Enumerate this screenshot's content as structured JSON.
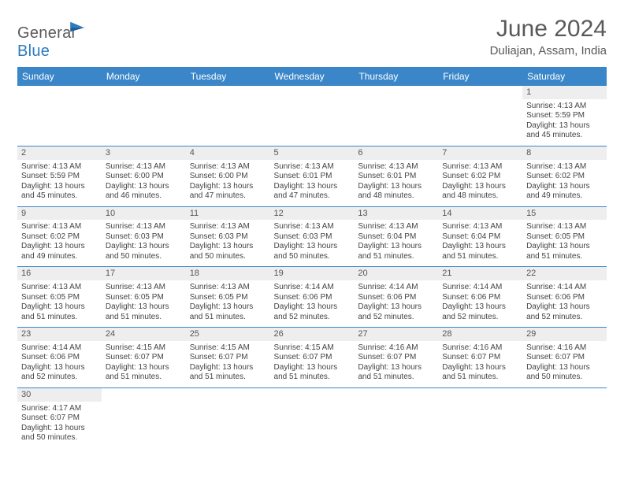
{
  "logo": {
    "text1": "General",
    "text2": "Blue"
  },
  "title": "June 2024",
  "location": "Duliajan, Assam, India",
  "colors": {
    "header_bg": "#3a86c8",
    "header_text": "#ffffff",
    "border": "#3a86c8",
    "daynum_bg": "#eeeeee",
    "text": "#444444",
    "title_text": "#595959"
  },
  "days": [
    "Sunday",
    "Monday",
    "Tuesday",
    "Wednesday",
    "Thursday",
    "Friday",
    "Saturday"
  ],
  "weeks": [
    {
      "nums": [
        "",
        "",
        "",
        "",
        "",
        "",
        "1"
      ],
      "cells": [
        "",
        "",
        "",
        "",
        "",
        "",
        "Sunrise: 4:13 AM\nSunset: 5:59 PM\nDaylight: 13 hours and 45 minutes."
      ]
    },
    {
      "nums": [
        "2",
        "3",
        "4",
        "5",
        "6",
        "7",
        "8"
      ],
      "cells": [
        "Sunrise: 4:13 AM\nSunset: 5:59 PM\nDaylight: 13 hours and 45 minutes.",
        "Sunrise: 4:13 AM\nSunset: 6:00 PM\nDaylight: 13 hours and 46 minutes.",
        "Sunrise: 4:13 AM\nSunset: 6:00 PM\nDaylight: 13 hours and 47 minutes.",
        "Sunrise: 4:13 AM\nSunset: 6:01 PM\nDaylight: 13 hours and 47 minutes.",
        "Sunrise: 4:13 AM\nSunset: 6:01 PM\nDaylight: 13 hours and 48 minutes.",
        "Sunrise: 4:13 AM\nSunset: 6:02 PM\nDaylight: 13 hours and 48 minutes.",
        "Sunrise: 4:13 AM\nSunset: 6:02 PM\nDaylight: 13 hours and 49 minutes."
      ]
    },
    {
      "nums": [
        "9",
        "10",
        "11",
        "12",
        "13",
        "14",
        "15"
      ],
      "cells": [
        "Sunrise: 4:13 AM\nSunset: 6:02 PM\nDaylight: 13 hours and 49 minutes.",
        "Sunrise: 4:13 AM\nSunset: 6:03 PM\nDaylight: 13 hours and 50 minutes.",
        "Sunrise: 4:13 AM\nSunset: 6:03 PM\nDaylight: 13 hours and 50 minutes.",
        "Sunrise: 4:13 AM\nSunset: 6:03 PM\nDaylight: 13 hours and 50 minutes.",
        "Sunrise: 4:13 AM\nSunset: 6:04 PM\nDaylight: 13 hours and 51 minutes.",
        "Sunrise: 4:13 AM\nSunset: 6:04 PM\nDaylight: 13 hours and 51 minutes.",
        "Sunrise: 4:13 AM\nSunset: 6:05 PM\nDaylight: 13 hours and 51 minutes."
      ]
    },
    {
      "nums": [
        "16",
        "17",
        "18",
        "19",
        "20",
        "21",
        "22"
      ],
      "cells": [
        "Sunrise: 4:13 AM\nSunset: 6:05 PM\nDaylight: 13 hours and 51 minutes.",
        "Sunrise: 4:13 AM\nSunset: 6:05 PM\nDaylight: 13 hours and 51 minutes.",
        "Sunrise: 4:13 AM\nSunset: 6:05 PM\nDaylight: 13 hours and 51 minutes.",
        "Sunrise: 4:14 AM\nSunset: 6:06 PM\nDaylight: 13 hours and 52 minutes.",
        "Sunrise: 4:14 AM\nSunset: 6:06 PM\nDaylight: 13 hours and 52 minutes.",
        "Sunrise: 4:14 AM\nSunset: 6:06 PM\nDaylight: 13 hours and 52 minutes.",
        "Sunrise: 4:14 AM\nSunset: 6:06 PM\nDaylight: 13 hours and 52 minutes."
      ]
    },
    {
      "nums": [
        "23",
        "24",
        "25",
        "26",
        "27",
        "28",
        "29"
      ],
      "cells": [
        "Sunrise: 4:14 AM\nSunset: 6:06 PM\nDaylight: 13 hours and 52 minutes.",
        "Sunrise: 4:15 AM\nSunset: 6:07 PM\nDaylight: 13 hours and 51 minutes.",
        "Sunrise: 4:15 AM\nSunset: 6:07 PM\nDaylight: 13 hours and 51 minutes.",
        "Sunrise: 4:15 AM\nSunset: 6:07 PM\nDaylight: 13 hours and 51 minutes.",
        "Sunrise: 4:16 AM\nSunset: 6:07 PM\nDaylight: 13 hours and 51 minutes.",
        "Sunrise: 4:16 AM\nSunset: 6:07 PM\nDaylight: 13 hours and 51 minutes.",
        "Sunrise: 4:16 AM\nSunset: 6:07 PM\nDaylight: 13 hours and 50 minutes."
      ]
    },
    {
      "nums": [
        "30",
        "",
        "",
        "",
        "",
        "",
        ""
      ],
      "cells": [
        "Sunrise: 4:17 AM\nSunset: 6:07 PM\nDaylight: 13 hours and 50 minutes.",
        "",
        "",
        "",
        "",
        "",
        ""
      ]
    }
  ]
}
